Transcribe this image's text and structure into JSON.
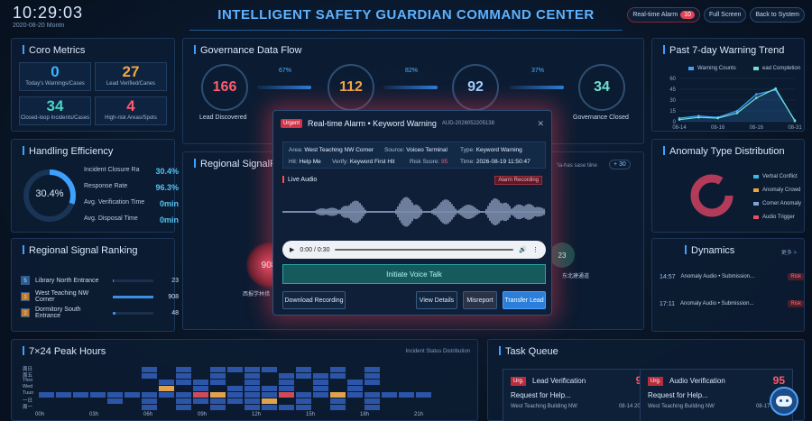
{
  "header": {
    "clock": "10:29:03",
    "date": "2020-08-20 Montn",
    "title": "INTELLIGENT SAFETY GUARDIAN COMMAND CENTER",
    "alarm_label": "Real-time Alarm",
    "alarm_count": "10",
    "fullscreen_label": "Full Screen",
    "back_label": "Back to System"
  },
  "core_metrics": {
    "title": "Coro Metrics",
    "items": [
      {
        "value": "0",
        "label": "Today's Warnings/Cases",
        "color": "#3db4ff"
      },
      {
        "value": "27",
        "label": "Lead Verified/Canes",
        "color": "#f2a742"
      },
      {
        "value": "34",
        "label": "Closed-loop Incidents/Cases",
        "color": "#48d6c4"
      },
      {
        "value": "4",
        "label": "High-risk Areas/Spots",
        "color": "#ff5a6e"
      }
    ]
  },
  "governance": {
    "title": "Governance Data Flow",
    "nodes": [
      {
        "value": "166",
        "label": "Lead Discovered",
        "color": "#ff5a6e"
      },
      {
        "value": "112",
        "label": "",
        "color": "#f2a742"
      },
      {
        "value": "92",
        "label": "",
        "color": "#9fd0ff"
      },
      {
        "value": "34",
        "label": "Governance Closed",
        "color": "#6fe0d0"
      }
    ],
    "rates": [
      "67%",
      "82%",
      "37%"
    ]
  },
  "trend": {
    "title": "Past 7-day Warning Trend",
    "legend": [
      "Warning Counts",
      "ead Completion"
    ],
    "yticks": [
      "60",
      "45",
      "30",
      "15",
      "0"
    ],
    "xticks": [
      "08-14",
      "08-16",
      "08-16",
      "08-31"
    ],
    "warnings": [
      5,
      8,
      6,
      15,
      38,
      44,
      2
    ],
    "completion": [
      3,
      6,
      5,
      12,
      33,
      46,
      1
    ]
  },
  "efficiency": {
    "title": "Handling Efficiency",
    "gauge": "30.4%",
    "gauge_fraction": 0.304,
    "rows": [
      {
        "label": "Incident Closure Ra",
        "value": "30.4%"
      },
      {
        "label": "Response Rate",
        "value": "96.3%"
      },
      {
        "label": "Avg. Verification Time",
        "value": "0min"
      },
      {
        "label": "Avg. Disposal Time",
        "value": "0min"
      }
    ]
  },
  "regional_map": {
    "title": "Regional SignalRank",
    "left_node": "908",
    "left_label": "西报学林措",
    "right_node": "23",
    "right_label": "东北建通道",
    "hint": "'Ia-has sase tiine",
    "delta": "+ 30"
  },
  "ranking": {
    "title": "Regional Signal Ranking",
    "rows": [
      {
        "rank": "5",
        "name": "Library North Entrance",
        "value": "23",
        "fraction": 0.03,
        "rank_color": "#2a5c96"
      },
      {
        "rank": "1",
        "name": "West Teaching NW Corner",
        "value": "908",
        "fraction": 1.0,
        "rank_color": "#c07a2a"
      },
      {
        "rank": "2",
        "name": "Dormitory South Entrance",
        "value": "48",
        "fraction": 0.06,
        "rank_color": "#c07a2a"
      }
    ]
  },
  "anomaly": {
    "title": "Anomaly Type Distribution",
    "legend": [
      {
        "label": "Verbal Conflict",
        "color": "#3fb8e8"
      },
      {
        "label": "Anomaly Crowd",
        "color": "#f0a640"
      },
      {
        "label": "Corner Anomaly",
        "color": "#7aa6d8"
      },
      {
        "label": "Audio Trigger",
        "color": "#e2506a"
      }
    ]
  },
  "dynamics": {
    "title": "Dynamics",
    "more": "更多 >",
    "rows": [
      {
        "time": "14:57",
        "text": "Anomaly Audio • Submission...",
        "tag": "Risk"
      },
      {
        "time": "17:11",
        "text": "Anomaly Audio • Submission...",
        "tag": "Risk"
      }
    ]
  },
  "peak": {
    "title": "7×24 Peak Hours",
    "subtitle": "Incident Status Distribution",
    "days": [
      "周日",
      "周五",
      "Thro",
      "Wed",
      "Tuun",
      "一日",
      "周一"
    ],
    "hours": [
      "00h",
      "03h",
      "06h",
      "09h",
      "12h",
      "15h",
      "18h",
      "21h"
    ]
  },
  "tasks": {
    "title": "Task Queue",
    "cards": [
      {
        "tag": "Urg.",
        "title": "Lead Verification",
        "score": "96",
        "request": "Request for Help...",
        "location": "West Teaching Building NW",
        "date": "08-14 20:32"
      },
      {
        "tag": "Urg.",
        "title": "Audio Verification",
        "score": "95",
        "request": "Request for Help...",
        "location": "West Teaching Building NW",
        "date": "08-17 14:58"
      }
    ]
  },
  "modal": {
    "tag": "Urgent",
    "title": "Real-time Alarm • Keyword Warning",
    "id": "AUD-2026052205138",
    "close": "✕",
    "area_label": "Area:",
    "area": "West Teaching NW Corner",
    "source_label": "Source:",
    "source": "Voiceo Terminal",
    "type_label": "Type:",
    "type": "Keyword Warning",
    "hit_label": "Hit:",
    "hit": "Help Me",
    "verify_label": "Verify:",
    "verify": "Keyword First Hit",
    "score_label": "Risk Score:",
    "score": "95",
    "time_label": "Time:",
    "time": "2026-08-19 11:50:47",
    "live_label": "Live Audio",
    "recording_label": "Alarm Recording",
    "player_time": "0:00 / 0:30",
    "voice_btn": "Initiate Voice Talk",
    "download_btn": "Download Recording",
    "details_btn": "View Details",
    "misreport_btn": "Misreport",
    "transfer_btn": "Transfer Lead"
  }
}
